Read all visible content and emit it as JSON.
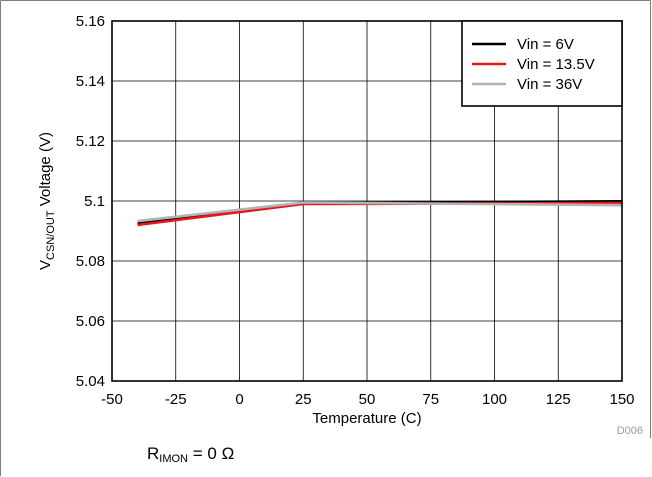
{
  "chart_data": {
    "type": "line",
    "xlabel": "Temperature (C)",
    "ylabel": {
      "main": "V",
      "sub": "CSN/OUT",
      "rest": " Voltage (V)"
    },
    "xlim": [
      -50,
      150
    ],
    "ylim": [
      5.04,
      5.16
    ],
    "xticks": [
      -50,
      -25,
      0,
      25,
      50,
      75,
      100,
      125,
      150
    ],
    "yticks": [
      5.04,
      5.06,
      5.08,
      5.1,
      5.12,
      5.14,
      5.16
    ],
    "xtick_labels": [
      "-50",
      "-25",
      "0",
      "25",
      "50",
      "75",
      "100",
      "125",
      "150"
    ],
    "ytick_labels": [
      "5.04",
      "5.06",
      "5.08",
      "5.1",
      "5.12",
      "5.14",
      "5.16"
    ],
    "grid": true,
    "legend_position": "top-right",
    "series": [
      {
        "name": "Vin = 6V",
        "color": "#000000",
        "x": [
          -40,
          25,
          150
        ],
        "y": [
          5.0925,
          5.0993,
          5.0999
        ]
      },
      {
        "name": "Vin = 13.5V",
        "color": "#e8151b",
        "x": [
          -40,
          25,
          150
        ],
        "y": [
          5.092,
          5.099,
          5.0993
        ]
      },
      {
        "name": "Vin = 36V",
        "color": "#b4b4b4",
        "x": [
          -40,
          25,
          150
        ],
        "y": [
          5.0933,
          5.0995,
          5.0986
        ]
      }
    ]
  },
  "figure_id": "D006",
  "caption": {
    "main": "R",
    "sub": "IMON",
    "rest": " = 0 Ω"
  }
}
